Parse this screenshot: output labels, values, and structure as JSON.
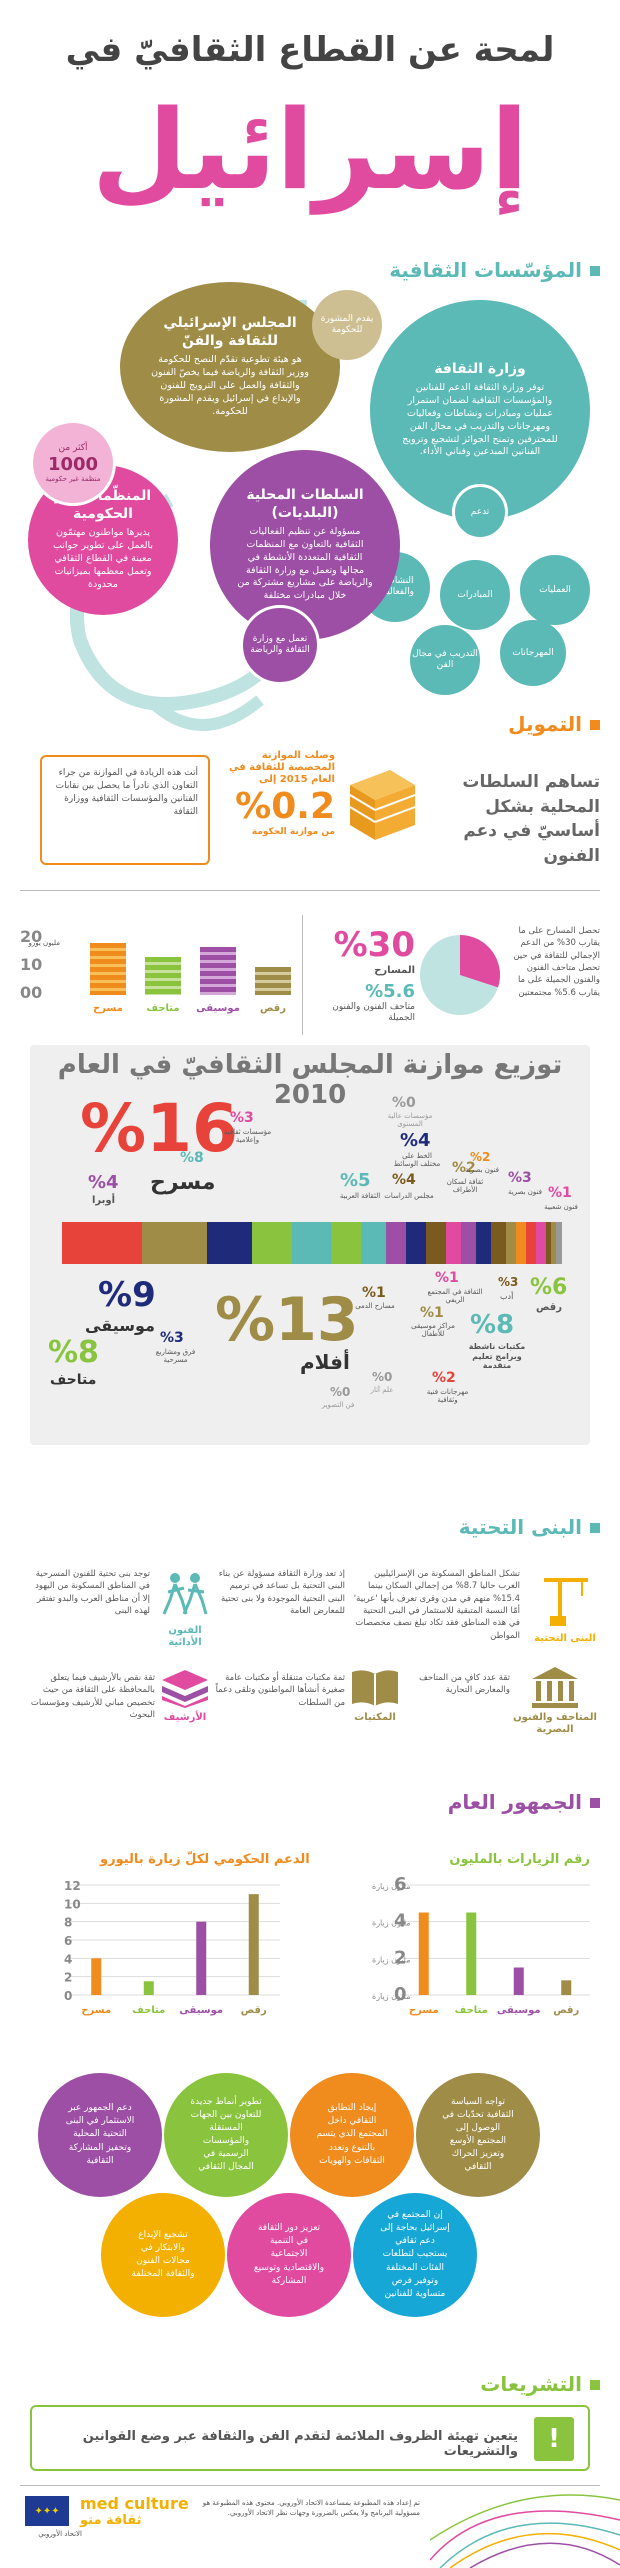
{
  "header": {
    "title_line1": "لمحة عن القطاع الثقافيّ في",
    "title_line2": "إسرائيل"
  },
  "colors": {
    "teal": "#5bb9b6",
    "olive": "#9e8c47",
    "purple": "#9c4fa5",
    "pink": "#e04a9f",
    "orange": "#f08b1d",
    "green": "#8ac43f",
    "navy": "#1f2b7a",
    "red": "#e8433a",
    "brown": "#7a5a1e"
  },
  "institutions": {
    "section_title": "المؤسّسات الثقافية",
    "ministry": {
      "title": "وزارة الثقافة",
      "body": "توفر وزارة الثقافة الدعم للفنانين والمؤسسات الثقافية لضمان استمرار عمليات ومبادرات ونشاطات وفعاليات ومهرجانات والتدريب في مجال الفن للمحترفين وتمنح الجوائز لتشجيع وترويج الفنانين المبدعين وفناني الأداء."
    },
    "support_label": "تدعم",
    "support_items": [
      "العمليات",
      "المبادرات",
      "النشاطات والفعاليات",
      "المهرجانات",
      "التدريب في مجال الفن"
    ],
    "council": {
      "title": "المجلس الإسرائيلي للثقافة والفنّ",
      "body": "هو هيئة تطوعية تقدّم النصح للحكومة ووزير الثقافة والرياضة فيما يخصّ الفنون والثقافة والعمل على الترويج للفنون والإبداع في إسرائيل ويقدم المشورة للحكومة."
    },
    "advice_label": "يقدم المشورة للحكومة",
    "local": {
      "title": "السلطات المحلية (البلديات)",
      "body": "مسؤولة عن تنظيم الفعاليات الثقافية بالتعاون مع المنظمات الثقافية المتعددة الأنشطة في مجالها وتعمل مع وزارة الثقافة والرياضة على مشاريع مشتركة من خلال مبادرات مختلفة"
    },
    "works_with_label": "تعمل مع وزارة الثقافة والرياضة",
    "ngo": {
      "title": "المنظّمات غير الحكومية",
      "body": "يديرها مواطنون مهتمّون بالعمل على تطوير جوانب معينة في القطاع الثقافي وتعمل معظمها بميزانيات محدودة"
    },
    "ngo_count": {
      "prefix": "أكثر من",
      "number": "1000",
      "suffix": "منظمة غير حكومية"
    }
  },
  "funding": {
    "section_title": "التمويل",
    "note_box": "أتت هذه الزيادة في الموازنة من جراء التعاون الذي نادراً ما يحصل بين نقابات الفنانين والمؤسسات الثقافية ووزارة الثقافة",
    "budget_text": "وصلت الموازنة المخصصة للثقافة في العام 2015 إلى",
    "budget_value": "%0.2",
    "budget_sub": "من موازنة الحكومة",
    "local_auth_text": "تساهم السلطات المحلية بشكل أساسيّ في دعم الفنون",
    "pie": {
      "slice_value": 30,
      "pct_main": "%30",
      "label_main": "المسارح",
      "pct_sub": "%5.6",
      "label_sub": "متاحف الفنون والفنون الجميلة",
      "desc": "تحصل المسارح على ما يقارب 30% من الدعم الإجمالي للثقافة في حين تحصل متاحف الفنون والفنون الجميلة على ما يقارب 5.6% مجتمعتين"
    },
    "mini_chart": {
      "unit": "مليون يورو",
      "ticks": [
        "20",
        "10",
        "00"
      ],
      "categories": [
        "رقص",
        "موسيقى",
        "متاحف",
        "مسرح"
      ]
    }
  },
  "distribution": {
    "title": "توزيع موازنة المجلس الثقافيّ في العام 2010",
    "items": [
      {
        "pct": "%16",
        "label": "مسرح",
        "color": "#e8433a"
      },
      {
        "pct": "%13",
        "label": "أفلام",
        "color": "#9e8c47"
      },
      {
        "pct": "%9",
        "label": "موسيقى",
        "color": "#1f2b7a"
      },
      {
        "pct": "%8",
        "label": "متاحف",
        "color": "#8ac43f"
      },
      {
        "pct": "%8",
        "label": "مكتبات ناشطة وبرامج تعليم متقدمة",
        "color": "#5bb9b6"
      },
      {
        "pct": "%6",
        "label": "رقص",
        "color": "#8ac43f"
      },
      {
        "pct": "%5",
        "label": "الثقافة العربية",
        "color": "#5bb9b6"
      },
      {
        "pct": "%4",
        "label": "أوبرا",
        "color": "#9c4fa5"
      },
      {
        "pct": "%4",
        "label": "الخط على مختلف الوسائط",
        "color": "#1f2b7a"
      },
      {
        "pct": "%4",
        "label": "مجلس الدراسات",
        "color": "#7a5a1e"
      },
      {
        "pct": "%3",
        "label": "مؤسسات ثقافية وإعلامية",
        "color": "#e04a9f"
      },
      {
        "pct": "%3",
        "label": "فنون بصرية",
        "color": "#9c4fa5"
      },
      {
        "pct": "%3",
        "label": "فرق ومشاريع مسرحية",
        "color": "#1f2b7a"
      },
      {
        "pct": "%3",
        "label": "أدب",
        "color": "#7a5a1e"
      },
      {
        "pct": "%2",
        "label": "ثقافة لسكان الأطراف",
        "color": "#9e8c47"
      },
      {
        "pct": "%2",
        "label": "فنون بصرية",
        "color": "#f08b1d"
      },
      {
        "pct": "%2",
        "label": "مهرجانات فنية وثقافية",
        "color": "#e8433a"
      },
      {
        "pct": "%1",
        "label": "فنون شعبية",
        "color": "#e04a9f"
      },
      {
        "pct": "%1",
        "label": "الثقافة في المجتمع الريفي",
        "color": "#e04a9f"
      },
      {
        "pct": "%1",
        "label": "مسارح الدمى",
        "color": "#7a5a1e"
      },
      {
        "pct": "%1",
        "label": "مراكز موسيقى للأطفال",
        "color": "#9e8c47"
      },
      {
        "pct": "%0",
        "label": "مؤسسات عالية المستوى",
        "color": "#999999"
      },
      {
        "pct": "%0",
        "label": "علم آثار",
        "color": "#999999"
      },
      {
        "pct": "%0",
        "label": "فن التصوير",
        "color": "#999999"
      }
    ]
  },
  "infrastructure": {
    "section_title": "البنى التحتية",
    "buildings": {
      "label": "البنى التحتية",
      "text": "تشكل المناطق المسكونة من الإسرائيليين العرب حاليا 8.7% من إجمالي السكان بينما 15.4% منهم في مدن وقرى تعرف بأنها 'عربية' أمّا النسبة المتبقية للاستثمار في البنى التحتية في هذه المناطق فقد تكاد تبلغ نصف مخصصات المواطن"
    },
    "performing": {
      "label": "الفنون الأدائية",
      "text": "توجد بنى تحتية للفنون المسرحية في المناطق المسكونة من اليهود إلا أن مناطق العرب والبدو تفتقر لهذه البنى"
    },
    "culture_note": "إذ تعد وزارة الثقافة مسؤولة عن بناء البنى التحتية بل تساعد في ترميم البنى التحتية الموجودة ولا بنى تحتية للمعارض العامة",
    "museums": {
      "label": "المتاحف والفنون البصرية",
      "text": "ثقة عدد كافٍ من المتاحف والمعارض التجارية"
    },
    "libraries": {
      "label": "المكتبات",
      "text": "ثمة مكتبات متنقلة أو مكتبات عامة صغيرة أنشأها المواطنون وتلقى دعماً من السلطات"
    },
    "archives": {
      "label": "الأرشيف",
      "text": "ثقة نقص بالأرشيف فيما يتعلق بالمحافظة على الثقافة من حيث تخصيص مباني للأرشيف ومؤسسات البحوث"
    }
  },
  "audience": {
    "section_title": "الجمهور العام",
    "visits_chart": {
      "title": "رقم الزيارات بالمليون",
      "ticks": [
        "6",
        "4",
        "2",
        "0"
      ],
      "tick_unit": "مليون زيارة",
      "categories": [
        "مسرح",
        "متاحف",
        "موسيقى",
        "رقص"
      ],
      "values": [
        4.5,
        4.5,
        1.5,
        0.8
      ],
      "ymax": 6
    },
    "subsidy_chart": {
      "title": "الدعم الحكومي لكلّ زيارة باليورو",
      "ticks": [
        "12",
        "10",
        "8",
        "6",
        "4",
        "2",
        "0"
      ],
      "categories": [
        "مسرح",
        "متاحف",
        "موسيقى",
        "رقص"
      ],
      "values": [
        4,
        1.5,
        8,
        11
      ],
      "ymax": 12
    }
  },
  "challenges": [
    {
      "text": "تواجه السياسة الثقافية تحدّيات في الوصول إلى المجتمع الأوسع وتعزيز الحراك الثقافي",
      "color": "#9e8c47"
    },
    {
      "text": "إيجاد التطابق الثقافي داخل المجتمع الذي يتسم بالتنوع وتعدد الثقافات والهويات",
      "color": "#f08b1d"
    },
    {
      "text": "تطوير أنماط جديدة للتعاون بين الجهات المستقلة والمؤسسات الرسمية في المجال الثقافي",
      "color": "#8ac43f"
    },
    {
      "text": "دعم الجمهور عبر الاستثمار في البنى التحتية المحلية وتحفيز المشاركة الثقافية",
      "color": "#9c4fa5"
    },
    {
      "text": "إن المجتمع في إسرائيل بحاجة إلى دعم ثقافي يستجيب لتطلعات الفئات المختلفة وتوفير فرص متساوية للفنانين",
      "color": "#16a7d6"
    },
    {
      "text": "تعزيز دور الثقافة في التنمية الاجتماعية والاقتصادية وتوسيع المشاركة",
      "color": "#e04a9f"
    },
    {
      "text": "تشجيع الإبداع والابتكار في مجالات الفنون والثقافة المختلفة",
      "color": "#f4b000"
    }
  ],
  "legislation": {
    "section_title": "التشريعات",
    "text": "يتعين تهيئة الظروف الملائمة لتقدم الفن والثقافة عبر وضع القوانين والتشريعات",
    "icon_glyph": "!"
  },
  "footer": {
    "eu_label": "الاتحاد الأوروبي",
    "brand_top": "med culture",
    "brand_bottom": "ثقافة متو",
    "disclaimer": "تم إعداد هذه المطبوعة بمساعدة الاتحاد الأوروبي. محتوى هذه المطبوعة هو مسؤولية البرنامج ولا يعكس بالضرورة وجهات نظر الاتحاد الأوروبي."
  }
}
